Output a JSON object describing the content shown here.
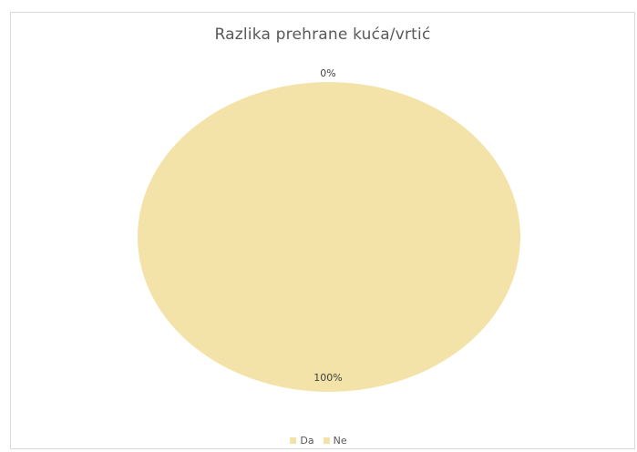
{
  "chart_data": {
    "type": "pie",
    "title": "Razlika prehrane kuća/vrtić",
    "categories": [
      "Da",
      "Ne"
    ],
    "values": [
      0,
      100
    ],
    "data_labels": [
      "0%",
      "100%"
    ],
    "colors": [
      "#f3e3a8",
      "#f3e3a8"
    ],
    "legend_position": "bottom"
  }
}
